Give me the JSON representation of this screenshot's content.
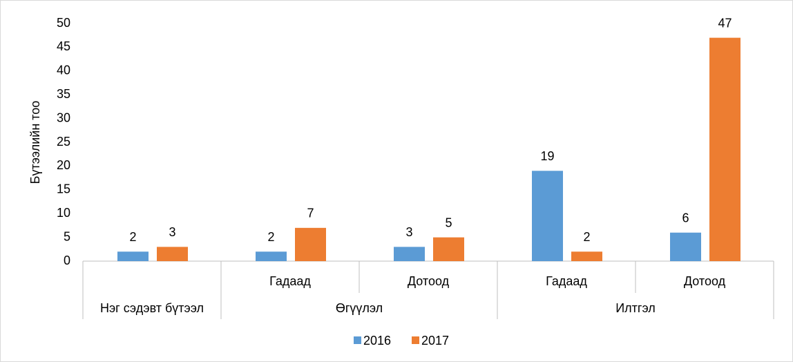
{
  "chart_data": {
    "type": "bar",
    "y_label": "Бүтээлийн тоо",
    "categories": [
      null,
      "Гадаад",
      "Дотоод",
      "Гадаад",
      "Дотоод"
    ],
    "groups": [
      {
        "name": "Нэг сэдэвт бүтээл",
        "size": 1
      },
      {
        "name": "Өгүүлэл",
        "size": 2
      },
      {
        "name": "Илтгэл",
        "size": 2
      }
    ],
    "series": [
      {
        "name": "2016",
        "color": "#5b9bd5",
        "values": [
          2,
          2,
          3,
          19,
          6
        ]
      },
      {
        "name": "2017",
        "color": "#ed7d31",
        "values": [
          3,
          7,
          5,
          2,
          47
        ]
      }
    ],
    "ylim": [
      0,
      50
    ],
    "yticks": [
      0,
      5,
      10,
      15,
      20,
      25,
      30,
      35,
      40,
      45,
      50
    ],
    "grid": false,
    "legend": "bottom"
  }
}
